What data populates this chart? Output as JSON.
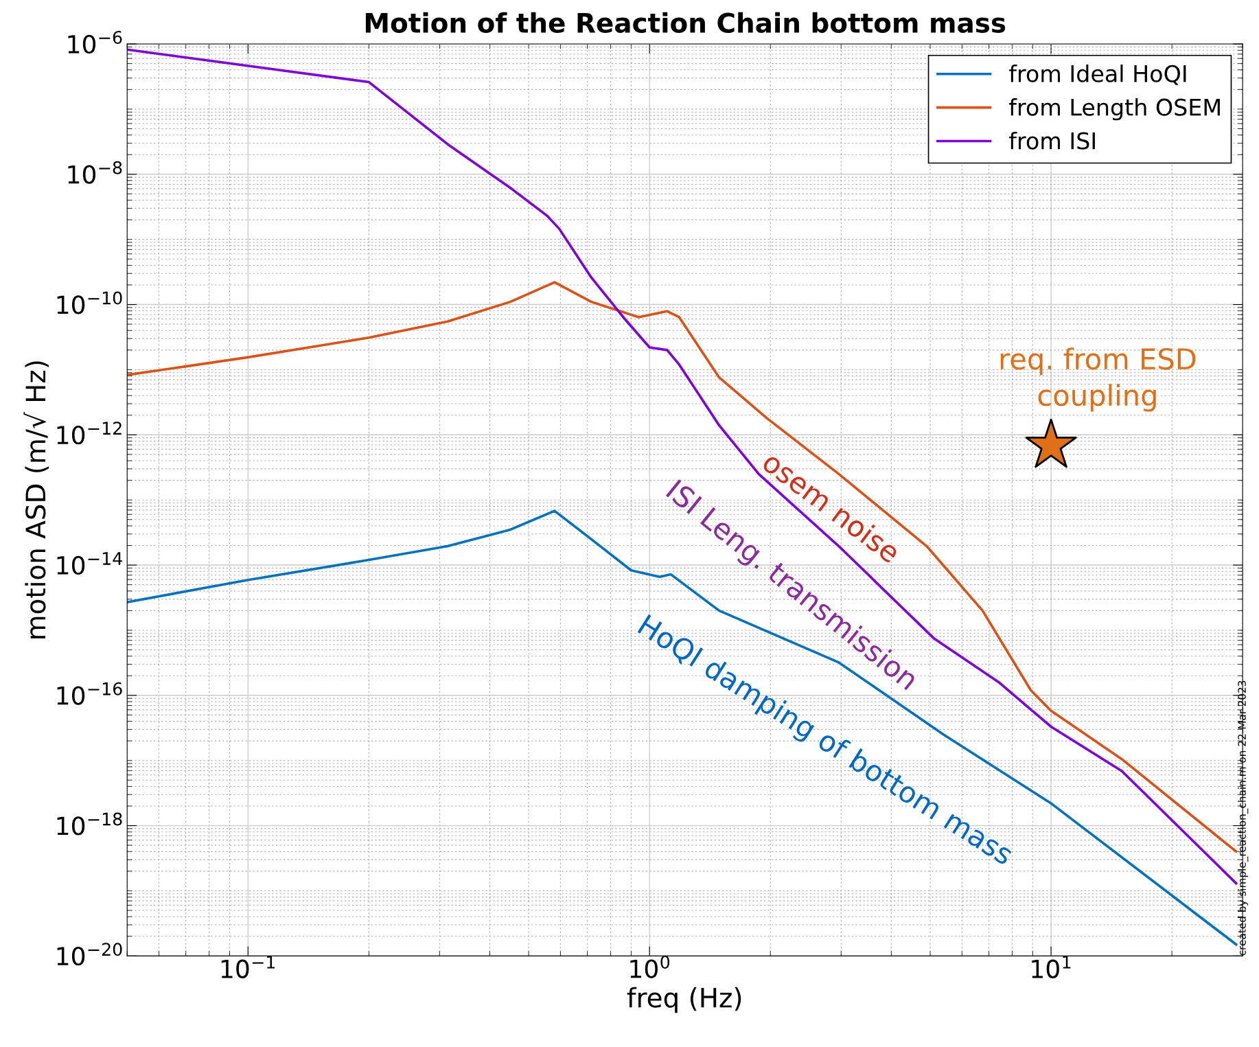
{
  "chart_data": {
    "type": "line",
    "title": "Motion of the Reaction Chain bottom mass",
    "xlabel": "freq (Hz)",
    "ylabel": "motion ASD (m/√ Hz)",
    "log": "xy",
    "grid": true,
    "legend": "top right",
    "line_style": "solid",
    "marker": "none",
    "xlim": [
      0.05,
      30
    ],
    "ylim": [
      1e-20,
      1e-06
    ],
    "xticks": [
      {
        "value": 0.1,
        "label": "10$^{−1}$"
      },
      {
        "value": 1,
        "label": "10$^{0}$"
      },
      {
        "value": 10,
        "label": "10$^{1}$"
      }
    ],
    "yticks": [
      {
        "value": 1e-20,
        "label": "10$^{−20}$"
      },
      {
        "value": 1e-18,
        "label": "10$^{−18}$"
      },
      {
        "value": 1e-16,
        "label": "10$^{−16}$"
      },
      {
        "value": 1e-14,
        "label": "10$^{−14}$"
      },
      {
        "value": 1e-12,
        "label": "10$^{−12}$"
      },
      {
        "value": 1e-10,
        "label": "10$^{−10}$"
      },
      {
        "value": 1e-08,
        "label": "10$^{−8}$"
      },
      {
        "value": 1e-06,
        "label": "10$^{−6}$"
      }
    ],
    "series": [
      {
        "name": "from Ideal HoQI",
        "color": "#0072bd",
        "x": [
          0.05,
          0.1,
          0.2,
          0.314,
          0.45,
          0.58,
          0.716,
          0.9,
          1.06,
          1.13,
          1.49,
          2.96,
          5.4,
          10,
          28.9
        ],
        "values": [
          2.7e-15,
          5.9e-15,
          1.2e-14,
          1.95e-14,
          3.5e-14,
          6.8e-14,
          2.5e-14,
          8.3e-15,
          6.6e-15,
          7.2e-15,
          2e-15,
          3.2e-16,
          2.5e-17,
          2.2e-18,
          1.5e-20
        ]
      },
      {
        "name": "from Length OSEM",
        "color": "#d95319",
        "x": [
          0.05,
          0.1,
          0.2,
          0.314,
          0.45,
          0.58,
          0.716,
          0.94,
          1.106,
          1.185,
          1.49,
          1.96,
          2.96,
          4.9,
          6.75,
          8.9,
          10,
          15,
          28.9
        ],
        "values": [
          8.3e-12,
          1.55e-11,
          3.1e-11,
          5.5e-11,
          1.1e-10,
          2.2e-10,
          1.1e-10,
          6.4e-11,
          7.9e-11,
          6.4e-11,
          7.6e-12,
          1.8e-12,
          2.5e-13,
          1.95e-14,
          2e-15,
          1.2e-16,
          5.8e-17,
          1.05e-17,
          4e-19
        ]
      },
      {
        "name": "from ISI",
        "color": "#7e00d6",
        "x": [
          0.05,
          0.2,
          0.314,
          0.453,
          0.556,
          0.596,
          0.716,
          0.86,
          1.0,
          1.106,
          1.185,
          1.49,
          1.87,
          2.96,
          5.12,
          7.4,
          10,
          15,
          28.9
        ],
        "values": [
          8.2e-07,
          2.6e-07,
          2.9e-08,
          6e-09,
          2.3e-09,
          1.45e-09,
          2.6e-10,
          6.4e-11,
          2.2e-11,
          2e-11,
          1.2e-11,
          1.4e-12,
          2.5e-13,
          1.95e-14,
          7.4e-16,
          1.6e-16,
          3.3e-17,
          6.9e-18,
          1.3e-19
        ]
      },
      {
        "type": "scatter",
        "marker": "star",
        "color": "#e07018",
        "x": [
          10
        ],
        "values": [
          6.8e-13
        ]
      }
    ],
    "annotations": [
      "req. from ESD\ncoupling",
      "osem noise",
      "ISI Leng. transmission",
      "HoQI damping of bottom mass",
      "created by simple_reaction_chain.m on 22-Mar-2023"
    ]
  }
}
